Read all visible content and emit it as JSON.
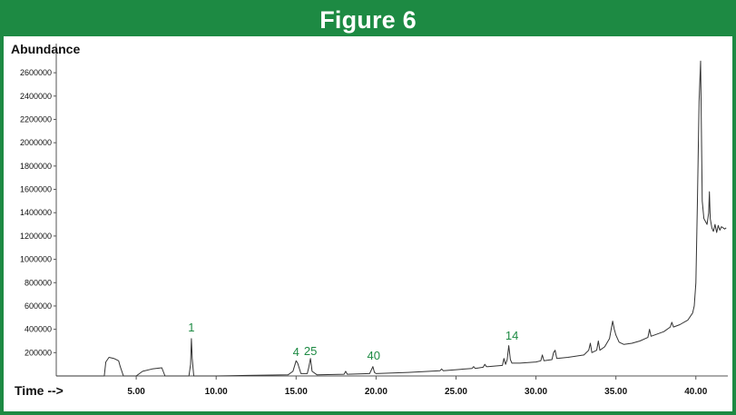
{
  "figure_title": "Figure 6",
  "chart_data": {
    "type": "line",
    "title": "",
    "ylabel": "Abundance",
    "xlabel": "Time -->",
    "xlim": [
      0,
      42
    ],
    "ylim": [
      0,
      2850000
    ],
    "grid": false,
    "x_ticks": [
      "5.00",
      "10.00",
      "15.00",
      "20.00",
      "25.00",
      "30.00",
      "35.00",
      "40.00"
    ],
    "y_ticks": [
      "200000",
      "400000",
      "600000",
      "800000",
      "1000000",
      "1200000",
      "1400000",
      "1600000",
      "1800000",
      "2000000",
      "2200000",
      "2400000",
      "2600000"
    ],
    "colors": {
      "frame": "#1d8a43",
      "trace": "#333333",
      "peak_label": "#1d8a43"
    },
    "peak_labels": [
      {
        "label": "1",
        "x": 8.45,
        "y": 380000
      },
      {
        "label": "4",
        "x": 15.0,
        "y": 170000
      },
      {
        "label": "25",
        "x": 15.9,
        "y": 180000
      },
      {
        "label": "40",
        "x": 19.85,
        "y": 140000
      },
      {
        "label": "14",
        "x": 28.5,
        "y": 310000
      }
    ],
    "x": [
      0.0,
      3.0,
      3.1,
      3.3,
      3.6,
      3.9,
      4.0,
      4.2,
      5.0,
      5.4,
      6.0,
      6.6,
      6.8,
      7.5,
      8.3,
      8.4,
      8.45,
      8.5,
      8.6,
      9.0,
      10.0,
      12.0,
      14.5,
      14.8,
      15.0,
      15.1,
      15.3,
      15.7,
      15.8,
      15.9,
      16.0,
      16.3,
      18.0,
      18.1,
      18.2,
      19.6,
      19.7,
      19.8,
      19.9,
      20.0,
      22.0,
      24.0,
      24.1,
      24.2,
      26.0,
      26.1,
      26.2,
      26.7,
      26.8,
      26.9,
      27.0,
      27.9,
      28.0,
      28.1,
      28.2,
      28.3,
      28.4,
      28.5,
      28.6,
      29.0,
      30.0,
      30.3,
      30.4,
      30.5,
      31.0,
      31.1,
      31.2,
      31.3,
      32.0,
      33.0,
      33.3,
      33.4,
      33.5,
      33.8,
      33.9,
      34.0,
      34.3,
      34.6,
      34.8,
      34.9,
      35.0,
      35.2,
      35.5,
      36.0,
      36.5,
      37.0,
      37.1,
      37.2,
      38.0,
      38.4,
      38.5,
      38.6,
      39.0,
      39.5,
      39.8,
      39.9,
      40.0,
      40.1,
      40.2,
      40.3,
      40.35,
      40.4,
      40.5,
      40.7,
      40.8,
      40.85,
      40.9,
      41.0,
      41.1,
      41.2,
      41.3,
      41.4,
      41.5,
      41.6,
      41.8,
      41.9
    ],
    "y": [
      0,
      0,
      120000,
      160000,
      150000,
      130000,
      80000,
      0,
      0,
      40000,
      60000,
      70000,
      0,
      0,
      0,
      100000,
      320000,
      150000,
      0,
      0,
      0,
      5000,
      10000,
      40000,
      130000,
      110000,
      20000,
      20000,
      80000,
      150000,
      40000,
      10000,
      15000,
      40000,
      15000,
      20000,
      50000,
      80000,
      30000,
      20000,
      30000,
      45000,
      60000,
      45000,
      65000,
      80000,
      65000,
      75000,
      100000,
      80000,
      80000,
      90000,
      150000,
      100000,
      140000,
      260000,
      140000,
      110000,
      110000,
      110000,
      120000,
      130000,
      180000,
      130000,
      140000,
      200000,
      220000,
      150000,
      160000,
      180000,
      220000,
      280000,
      200000,
      220000,
      300000,
      220000,
      250000,
      320000,
      470000,
      400000,
      350000,
      290000,
      270000,
      280000,
      300000,
      330000,
      400000,
      340000,
      380000,
      420000,
      460000,
      420000,
      440000,
      480000,
      540000,
      600000,
      800000,
      1500000,
      2350000,
      2700000,
      2100000,
      1500000,
      1350000,
      1300000,
      1400000,
      1580000,
      1350000,
      1270000,
      1240000,
      1300000,
      1230000,
      1290000,
      1250000,
      1280000,
      1260000,
      1270000
    ]
  }
}
